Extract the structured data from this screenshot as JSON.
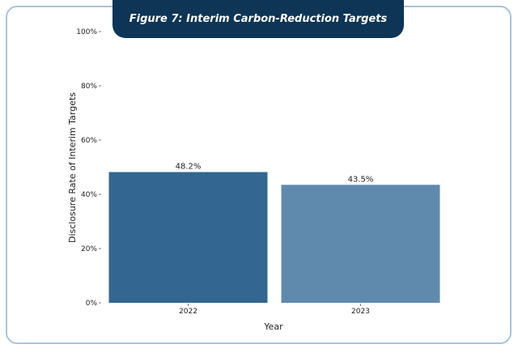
{
  "chart_data": {
    "type": "bar",
    "title": "Figure 7:   Interim Carbon-Reduction Targets",
    "xlabel": "Year",
    "ylabel": "Disclosure Rate of Interim Targets",
    "categories": [
      "2022",
      "2023"
    ],
    "values": [
      48.2,
      43.5
    ],
    "value_labels": [
      "48.2%",
      "43.5%"
    ],
    "ylim": [
      0,
      100
    ],
    "yticks": [
      0,
      20,
      40,
      60,
      80,
      100
    ],
    "ytick_labels": [
      "0%",
      "20%",
      "40%",
      "60%",
      "80%",
      "100%"
    ],
    "bar_colors": [
      "#336690",
      "#5f8aae"
    ],
    "grid": false
  },
  "colors": {
    "title_bg": "#0e3556",
    "frame_border": "#a9c4dc"
  }
}
